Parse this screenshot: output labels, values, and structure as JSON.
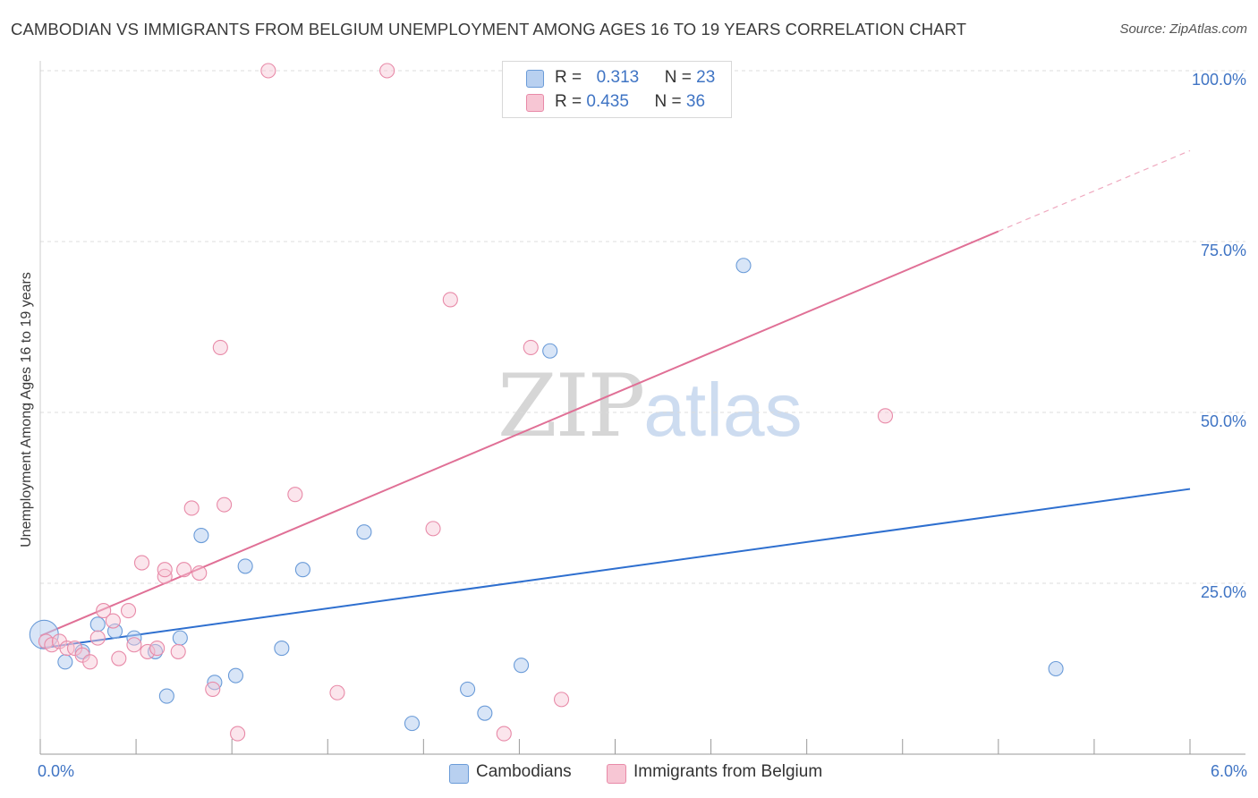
{
  "title": "CAMBODIAN VS IMMIGRANTS FROM BELGIUM UNEMPLOYMENT AMONG AGES 16 TO 19 YEARS CORRELATION CHART",
  "source": "Source: ZipAtlas.com",
  "watermark": {
    "zip": "ZIP",
    "atlas": "atlas"
  },
  "colors": {
    "blue": "#6a9bd8",
    "blue_fill": "#b8d0f0",
    "blue_line": "#2e6fcf",
    "pink": "#e88aa8",
    "pink_fill": "#f7c6d4",
    "pink_line": "#e07096",
    "axis_text": "#3f74c4",
    "grid": "#dddddd"
  },
  "legend_top": [
    {
      "r_label": "R =",
      "r_value": "0.313",
      "n_label": "N =",
      "n_value": "23"
    },
    {
      "r_label": "R =",
      "r_value": "0.435",
      "n_label": "N =",
      "n_value": "36"
    }
  ],
  "legend_bottom": [
    {
      "label": "Cambodians"
    },
    {
      "label": "Immigrants from Belgium"
    }
  ],
  "chart_data": {
    "type": "scatter",
    "title": "CAMBODIAN VS IMMIGRANTS FROM BELGIUM UNEMPLOYMENT AMONG AGES 16 TO 19 YEARS CORRELATION CHART",
    "xlabel": "",
    "ylabel": "Unemployment Among Ages 16 to 19 years",
    "xlim": [
      0,
      6
    ],
    "ylim": [
      0,
      102
    ],
    "x_tick_labels": [
      "0.0%",
      "6.0%"
    ],
    "y_ticks": [
      25,
      50,
      75,
      100
    ],
    "y_tick_labels": [
      "25.0%",
      "50.0%",
      "75.0%",
      "100.0%"
    ],
    "grid": true,
    "series": [
      {
        "name": "Cambodians",
        "color": "#6a9bd8",
        "points": [
          {
            "x": 0.02,
            "y": 17.5,
            "big": true
          },
          {
            "x": 0.13,
            "y": 13.5
          },
          {
            "x": 0.22,
            "y": 15.0
          },
          {
            "x": 0.3,
            "y": 19.0
          },
          {
            "x": 0.39,
            "y": 18.0
          },
          {
            "x": 0.49,
            "y": 17.0
          },
          {
            "x": 0.6,
            "y": 15.0
          },
          {
            "x": 0.66,
            "y": 8.5
          },
          {
            "x": 0.73,
            "y": 17.0
          },
          {
            "x": 0.84,
            "y": 32.0
          },
          {
            "x": 0.91,
            "y": 10.5
          },
          {
            "x": 1.02,
            "y": 11.5
          },
          {
            "x": 1.07,
            "y": 27.5
          },
          {
            "x": 1.26,
            "y": 15.5
          },
          {
            "x": 1.37,
            "y": 27.0
          },
          {
            "x": 1.69,
            "y": 32.5
          },
          {
            "x": 1.94,
            "y": 4.5
          },
          {
            "x": 2.23,
            "y": 9.5
          },
          {
            "x": 2.32,
            "y": 6.0
          },
          {
            "x": 2.51,
            "y": 13.0
          },
          {
            "x": 2.66,
            "y": 59.0
          },
          {
            "x": 3.67,
            "y": 71.5
          },
          {
            "x": 5.3,
            "y": 12.5
          }
        ],
        "trendline": {
          "x": [
            0,
            6
          ],
          "y": [
            15.5,
            38.8
          ]
        }
      },
      {
        "name": "Immigrants from Belgium",
        "color": "#e88aa8",
        "points": [
          {
            "x": 0.03,
            "y": 16.5
          },
          {
            "x": 0.06,
            "y": 16.0
          },
          {
            "x": 0.1,
            "y": 16.5
          },
          {
            "x": 0.14,
            "y": 15.5
          },
          {
            "x": 0.18,
            "y": 15.5
          },
          {
            "x": 0.22,
            "y": 14.5
          },
          {
            "x": 0.26,
            "y": 13.5
          },
          {
            "x": 0.3,
            "y": 17.0
          },
          {
            "x": 0.33,
            "y": 21.0
          },
          {
            "x": 0.38,
            "y": 19.5
          },
          {
            "x": 0.41,
            "y": 14.0
          },
          {
            "x": 0.46,
            "y": 21.0
          },
          {
            "x": 0.49,
            "y": 16.0
          },
          {
            "x": 0.53,
            "y": 28.0
          },
          {
            "x": 0.56,
            "y": 15.0
          },
          {
            "x": 0.61,
            "y": 15.5
          },
          {
            "x": 0.65,
            "y": 26.0
          },
          {
            "x": 0.65,
            "y": 27.0
          },
          {
            "x": 0.72,
            "y": 15.0
          },
          {
            "x": 0.75,
            "y": 27.0
          },
          {
            "x": 0.79,
            "y": 36.0
          },
          {
            "x": 0.83,
            "y": 26.5
          },
          {
            "x": 0.9,
            "y": 9.5
          },
          {
            "x": 0.94,
            "y": 59.5
          },
          {
            "x": 0.96,
            "y": 36.5
          },
          {
            "x": 1.03,
            "y": 3.0
          },
          {
            "x": 1.19,
            "y": 100.0
          },
          {
            "x": 1.33,
            "y": 38.0
          },
          {
            "x": 1.55,
            "y": 9.0
          },
          {
            "x": 1.81,
            "y": 100.0
          },
          {
            "x": 2.05,
            "y": 33.0
          },
          {
            "x": 2.14,
            "y": 66.5
          },
          {
            "x": 2.42,
            "y": 3.0
          },
          {
            "x": 2.56,
            "y": 59.5
          },
          {
            "x": 2.72,
            "y": 8.0
          },
          {
            "x": 4.41,
            "y": 49.5
          }
        ],
        "trendline": {
          "x": [
            0,
            5
          ],
          "y": [
            17.3,
            76.5
          ],
          "dashed_to": {
            "x": 6,
            "y": 88.3
          }
        }
      }
    ]
  }
}
